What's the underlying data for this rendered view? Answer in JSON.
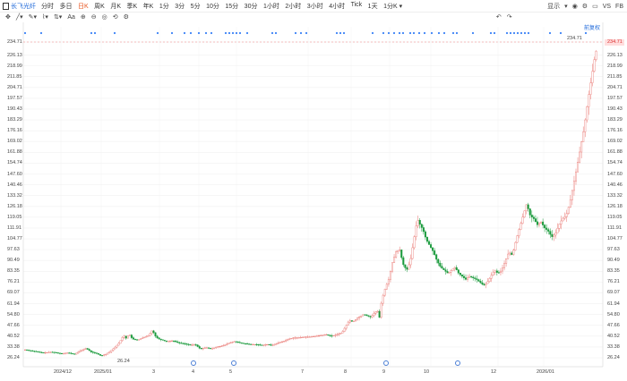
{
  "topbar": {
    "stock_name": "长飞光纤",
    "periods": [
      {
        "label": "分时"
      },
      {
        "label": "多日"
      },
      {
        "label": "日K",
        "active": true
      },
      {
        "label": "周K"
      },
      {
        "label": "月K"
      },
      {
        "label": "季K"
      },
      {
        "label": "年K"
      },
      {
        "label": "1分"
      },
      {
        "label": "3分"
      },
      {
        "label": "5分"
      },
      {
        "label": "10分"
      },
      {
        "label": "15分"
      },
      {
        "label": "30分"
      },
      {
        "label": "1小时"
      },
      {
        "label": "2小时"
      },
      {
        "label": "3小时"
      },
      {
        "label": "4小时"
      },
      {
        "label": "Tick"
      },
      {
        "label": "1天"
      },
      {
        "label": "1分K",
        "dropdown": true
      }
    ],
    "right_label": "显示",
    "right_icons": [
      "camera-icon",
      "settings-icon",
      "layout-icon",
      "vs-label",
      "fb-label"
    ],
    "vs": "VS",
    "fb": "FB"
  },
  "toolbar": {
    "tools": [
      "crosshair-icon",
      "line-tool-icon",
      "pen-tool-icon",
      "brush-tool-icon",
      "measure-tool-icon",
      "text-tool-icon",
      "zoom-in-icon",
      "zoom-out-icon",
      "target-icon",
      "reset-icon",
      "settings-icon",
      "undo-icon",
      "redo-icon"
    ],
    "text_tool": "Aa",
    "undo": "↶",
    "redo": "↷"
  },
  "fuquan_label": "前复权",
  "high_label": "234.71",
  "low_label": "26.24",
  "current_price_tag": "234.71",
  "colors": {
    "up": "#e8746f",
    "down": "#1a9a3c",
    "accent": "#1a66d9",
    "dots": "#3b82f6"
  },
  "chart_data": {
    "type": "candlestick",
    "title": "",
    "y_ticks": [
      "234.71",
      "226.13",
      "218.99",
      "211.85",
      "204.71",
      "197.57",
      "190.43",
      "183.29",
      "176.16",
      "169.02",
      "161.88",
      "154.74",
      "147.60",
      "140.46",
      "133.32",
      "126.18",
      "119.05",
      "111.91",
      "104.77",
      "97.63",
      "90.49",
      "83.35",
      "76.21",
      "69.07",
      "61.94",
      "54.80",
      "47.66",
      "40.52",
      "33.38",
      "26.24"
    ],
    "ylim": [
      26.24,
      234.71
    ],
    "x_ticks": [
      "2024/12",
      "2025/01",
      "3",
      "4",
      "5",
      "7",
      "8",
      "9",
      "10",
      "12",
      "2026/01"
    ],
    "price_path": [
      [
        0,
        31.5
      ],
      [
        10,
        30.5
      ],
      [
        20,
        29.5
      ],
      [
        30,
        30.0
      ],
      [
        40,
        29.0
      ],
      [
        48,
        29.5
      ],
      [
        55,
        28.5
      ],
      [
        62,
        31.0
      ],
      [
        68,
        32.5
      ],
      [
        74,
        30.0
      ],
      [
        80,
        29.0
      ],
      [
        85,
        27.5
      ],
      [
        90,
        28.5
      ],
      [
        95,
        30.5
      ],
      [
        100,
        33.0
      ],
      [
        105,
        36.0
      ],
      [
        110,
        41.0
      ],
      [
        113,
        39.0
      ],
      [
        116,
        42.0
      ],
      [
        120,
        38.5
      ],
      [
        126,
        38.0
      ],
      [
        132,
        39.5
      ],
      [
        138,
        41.0
      ],
      [
        142,
        44.5
      ],
      [
        146,
        40.0
      ],
      [
        150,
        38.5
      ],
      [
        158,
        37.0
      ],
      [
        165,
        37.5
      ],
      [
        172,
        36.0
      ],
      [
        178,
        35.5
      ],
      [
        185,
        34.5
      ],
      [
        190,
        35.0
      ],
      [
        196,
        32.0
      ],
      [
        202,
        33.0
      ],
      [
        208,
        32.0
      ],
      [
        214,
        33.5
      ],
      [
        220,
        34.0
      ],
      [
        228,
        36.0
      ],
      [
        234,
        37.0
      ],
      [
        240,
        36.0
      ],
      [
        246,
        35.5
      ],
      [
        252,
        35.0
      ],
      [
        258,
        35.0
      ],
      [
        264,
        34.5
      ],
      [
        270,
        35.0
      ],
      [
        276,
        34.5
      ],
      [
        282,
        36.0
      ],
      [
        288,
        37.0
      ],
      [
        294,
        38.5
      ],
      [
        300,
        39.5
      ],
      [
        306,
        39.5
      ],
      [
        312,
        40.0
      ],
      [
        318,
        40.0
      ],
      [
        324,
        40.5
      ],
      [
        330,
        41.0
      ],
      [
        336,
        41.5
      ],
      [
        342,
        40.5
      ],
      [
        348,
        41.5
      ],
      [
        354,
        43.0
      ],
      [
        358,
        47.0
      ],
      [
        362,
        51.0
      ],
      [
        366,
        50.0
      ],
      [
        370,
        52.0
      ],
      [
        374,
        53.5
      ],
      [
        378,
        55.0
      ],
      [
        382,
        54.0
      ],
      [
        386,
        53.0
      ],
      [
        390,
        56.0
      ],
      [
        394,
        57.0
      ],
      [
        396,
        52.0
      ],
      [
        398,
        64.0
      ],
      [
        402,
        72.0
      ],
      [
        406,
        78.0
      ],
      [
        410,
        89.0
      ],
      [
        414,
        96.0
      ],
      [
        418,
        98.0
      ],
      [
        422,
        88.0
      ],
      [
        426,
        84.0
      ],
      [
        430,
        90.0
      ],
      [
        434,
        104.0
      ],
      [
        438,
        118.0
      ],
      [
        441,
        114.0
      ],
      [
        444,
        111.0
      ],
      [
        448,
        104.0
      ],
      [
        452,
        100.0
      ],
      [
        456,
        96.0
      ],
      [
        460,
        90.0
      ],
      [
        464,
        86.0
      ],
      [
        468,
        84.0
      ],
      [
        472,
        82.0
      ],
      [
        476,
        84.0
      ],
      [
        480,
        86.0
      ],
      [
        484,
        82.0
      ],
      [
        488,
        80.0
      ],
      [
        492,
        78.0
      ],
      [
        496,
        80.0
      ],
      [
        500,
        79.0
      ],
      [
        504,
        78.0
      ],
      [
        508,
        76.0
      ],
      [
        512,
        74.0
      ],
      [
        516,
        76.0
      ],
      [
        520,
        80.0
      ],
      [
        524,
        84.0
      ],
      [
        528,
        82.0
      ],
      [
        532,
        84.0
      ],
      [
        536,
        90.0
      ],
      [
        540,
        96.0
      ],
      [
        544,
        94.0
      ],
      [
        548,
        104.0
      ],
      [
        552,
        112.0
      ],
      [
        556,
        120.0
      ],
      [
        560,
        128.0
      ],
      [
        564,
        120.0
      ],
      [
        568,
        118.0
      ],
      [
        572,
        114.0
      ],
      [
        576,
        116.0
      ],
      [
        580,
        112.0
      ],
      [
        584,
        110.0
      ],
      [
        588,
        106.0
      ],
      [
        592,
        108.0
      ],
      [
        596,
        114.0
      ],
      [
        600,
        118.0
      ],
      [
        604,
        120.0
      ],
      [
        608,
        128.0
      ],
      [
        612,
        140.0
      ],
      [
        616,
        152.0
      ],
      [
        620,
        165.0
      ],
      [
        624,
        178.0
      ],
      [
        628,
        195.0
      ],
      [
        632,
        210.0
      ],
      [
        636,
        225.0
      ],
      [
        639,
        232.0
      ]
    ]
  }
}
